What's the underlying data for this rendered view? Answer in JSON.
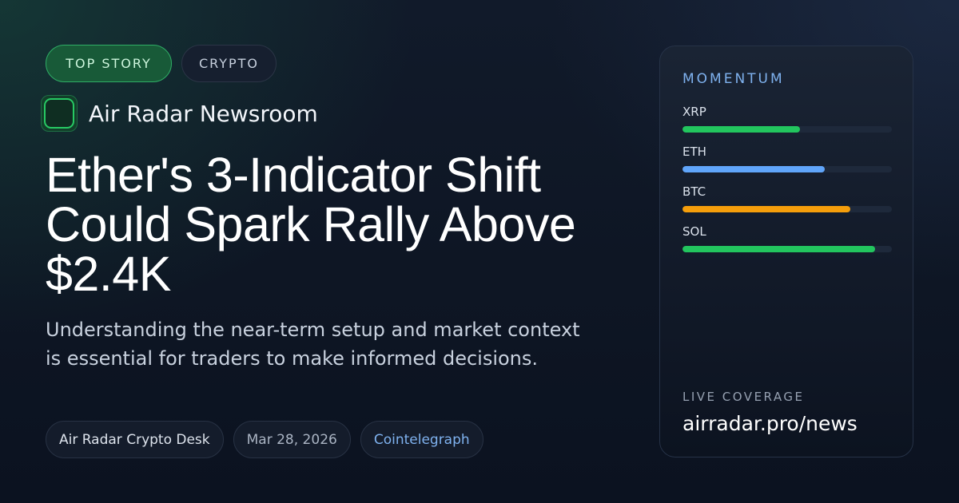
{
  "tags": {
    "primary": "TOP STORY",
    "category": "CRYPTO"
  },
  "brand": {
    "name": "Air Radar Newsroom"
  },
  "article": {
    "headline": "Ether's 3-Indicator Shift Could Spark Rally Above $2.4K",
    "subtitle": "Understanding the near-term setup and market context is essential for traders to make informed decisions."
  },
  "meta": {
    "desk": "Air Radar Crypto Desk",
    "date": "Mar 28, 2026",
    "source": "Cointelegraph"
  },
  "momentum": {
    "title": "MOMENTUM",
    "items": [
      {
        "label": "XRP",
        "level": 0.56,
        "color": "#22c55e"
      },
      {
        "label": "ETH",
        "level": 0.68,
        "color": "#60a5fa"
      },
      {
        "label": "BTC",
        "level": 0.8,
        "color": "#f59e0b"
      },
      {
        "label": "SOL",
        "level": 0.92,
        "color": "#22c55e"
      }
    ]
  },
  "coverage": {
    "label": "LIVE COVERAGE",
    "url": "airradar.pro/news"
  }
}
